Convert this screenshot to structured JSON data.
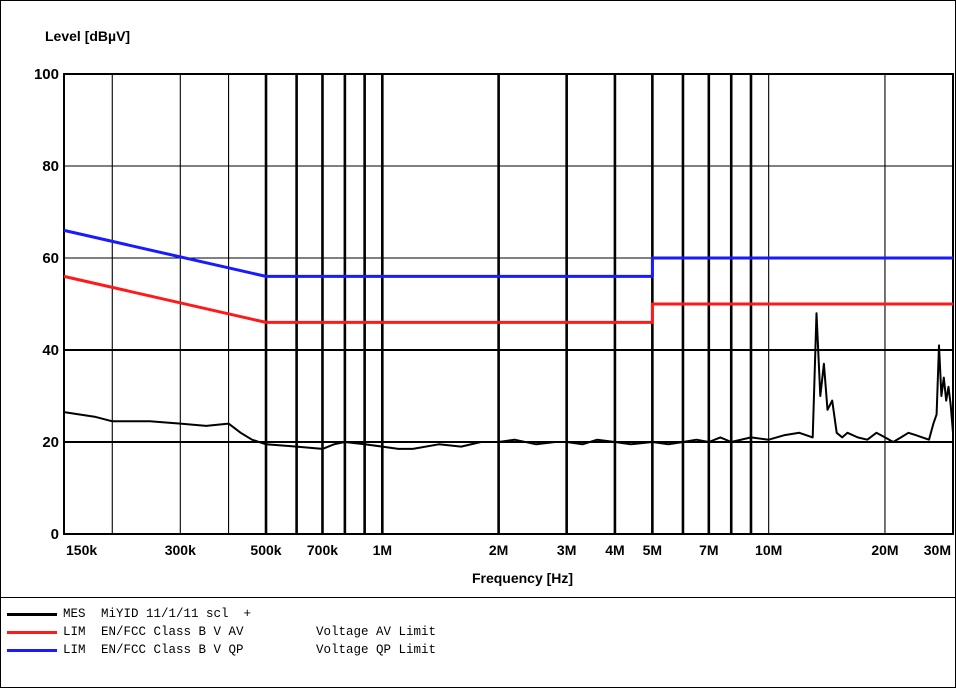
{
  "chart_data": {
    "type": "line",
    "ylabel": "Level [dBµV]",
    "xlabel": "Frequency [Hz]",
    "x_scale": "log",
    "xlim": [
      150000,
      30000000
    ],
    "ylim": [
      0,
      100
    ],
    "y_ticks": [
      0,
      20,
      40,
      60,
      80,
      100
    ],
    "y_tick_labels": [
      "0",
      "20",
      "40",
      "60",
      "80",
      "100"
    ],
    "x_tick_labels": [
      {
        "x": 150000,
        "label": "150k"
      },
      {
        "x": 300000,
        "label": "300k"
      },
      {
        "x": 500000,
        "label": "500k"
      },
      {
        "x": 700000,
        "label": "700k"
      },
      {
        "x": 1000000,
        "label": "1M"
      },
      {
        "x": 2000000,
        "label": "2M"
      },
      {
        "x": 3000000,
        "label": "3M"
      },
      {
        "x": 4000000,
        "label": "4M"
      },
      {
        "x": 5000000,
        "label": "5M"
      },
      {
        "x": 7000000,
        "label": "7M"
      },
      {
        "x": 10000000,
        "label": "10M"
      },
      {
        "x": 20000000,
        "label": "20M"
      },
      {
        "x": 30000000,
        "label": "30M"
      }
    ],
    "x_grid": [
      200000,
      300000,
      400000,
      500000,
      600000,
      700000,
      800000,
      900000,
      1000000,
      2000000,
      3000000,
      4000000,
      5000000,
      6000000,
      7000000,
      8000000,
      9000000,
      10000000,
      20000000
    ],
    "x_grid_bold": [
      500000,
      600000,
      700000,
      800000,
      900000,
      1000000,
      2000000,
      3000000,
      4000000,
      5000000,
      6000000,
      7000000,
      8000000,
      9000000
    ],
    "grid": true,
    "series": [
      {
        "name": "Voltage QP Limit",
        "color": "#1a1aff",
        "x": [
          150000,
          500000,
          500000,
          5000000,
          5000000,
          30000000
        ],
        "y": [
          66,
          56,
          56,
          56,
          60,
          60
        ]
      },
      {
        "name": "Voltage AV Limit",
        "color": "#ff1a1a",
        "x": [
          150000,
          500000,
          500000,
          5000000,
          5000000,
          30000000
        ],
        "y": [
          56,
          46,
          46,
          46,
          50,
          50
        ]
      },
      {
        "name": "MES",
        "color": "#000000",
        "x": [
          150000,
          180000,
          200000,
          250000,
          300000,
          350000,
          400000,
          430000,
          460000,
          500000,
          600000,
          700000,
          750000,
          800000,
          900000,
          1000000,
          1100000,
          1200000,
          1400000,
          1600000,
          1800000,
          2000000,
          2200000,
          2500000,
          2800000,
          3000000,
          3300000,
          3600000,
          4000000,
          4400000,
          5000000,
          5500000,
          6000000,
          6500000,
          7000000,
          7500000,
          8000000,
          9000000,
          10000000,
          11000000,
          12000000,
          13000000,
          13300000,
          13600000,
          13900000,
          14200000,
          14600000,
          15000000,
          15500000,
          16000000,
          17000000,
          18000000,
          19000000,
          20000000,
          21000000,
          22000000,
          23000000,
          24000000,
          25000000,
          26000000,
          26700000,
          27200000,
          27600000,
          28000000,
          28400000,
          28800000,
          29200000,
          29600000,
          30000000
        ],
        "y": [
          26.5,
          25.5,
          24.5,
          24.5,
          24,
          23.5,
          24,
          22,
          20.5,
          19.5,
          19,
          18.5,
          19.5,
          20,
          19.5,
          19,
          18.5,
          18.5,
          19.5,
          19,
          20,
          20,
          20.5,
          19.5,
          20,
          20,
          19.5,
          20.5,
          20,
          19.5,
          20,
          19.5,
          20,
          20.5,
          20,
          21,
          20,
          21,
          20.5,
          21.5,
          22,
          21,
          48,
          30,
          37,
          27,
          29,
          22,
          21,
          22,
          21,
          20.5,
          22,
          21,
          20,
          21,
          22,
          21.5,
          21,
          20.5,
          24,
          26,
          41,
          30,
          34,
          29,
          32,
          28,
          22
        ]
      }
    ]
  },
  "legend": [
    {
      "kind": "MES",
      "name": "MiYID 11/1/11 scl  +",
      "desc": "",
      "color": "#000000"
    },
    {
      "kind": "LIM",
      "name": "EN/FCC Class B V AV",
      "desc": "Voltage AV Limit",
      "color": "#ff1a1a"
    },
    {
      "kind": "LIM",
      "name": "EN/FCC Class B V QP",
      "desc": "Voltage QP Limit",
      "color": "#1a1aff"
    }
  ]
}
